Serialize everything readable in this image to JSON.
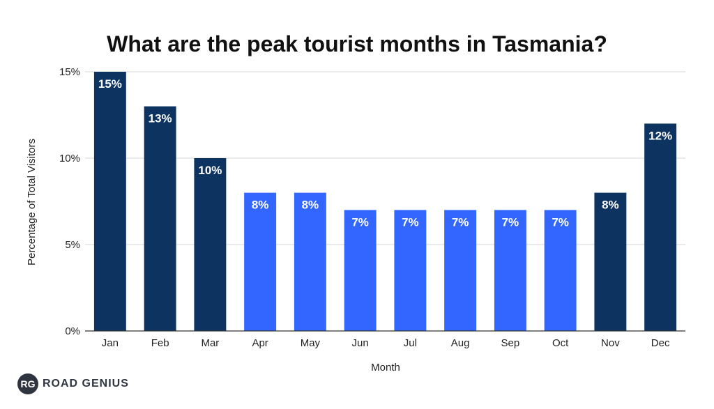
{
  "brand": {
    "badge": "RG",
    "name": "ROAD GENIUS"
  },
  "chart_data": {
    "type": "bar",
    "title": "What are the peak tourist months in Tasmania?",
    "xlabel": "Month",
    "ylabel": "Percentage of Total Visitors",
    "categories": [
      "Jan",
      "Feb",
      "Mar",
      "Apr",
      "May",
      "Jun",
      "Jul",
      "Aug",
      "Sep",
      "Oct",
      "Nov",
      "Dec"
    ],
    "values": [
      15,
      13,
      10,
      8,
      8,
      7,
      7,
      7,
      7,
      7,
      8,
      12
    ],
    "value_labels": [
      "15%",
      "13%",
      "10%",
      "8%",
      "8%",
      "7%",
      "7%",
      "7%",
      "7%",
      "7%",
      "8%",
      "12%"
    ],
    "bar_colors": [
      "#0d3461",
      "#0d3461",
      "#0d3461",
      "#3366ff",
      "#3366ff",
      "#3366ff",
      "#3366ff",
      "#3366ff",
      "#3366ff",
      "#3366ff",
      "#0d3461",
      "#0d3461"
    ],
    "ylim": [
      0,
      15
    ],
    "yticks": [
      0,
      5,
      10,
      15
    ],
    "ytick_labels": [
      "0%",
      "5%",
      "10%",
      "15%"
    ],
    "grid": true
  }
}
